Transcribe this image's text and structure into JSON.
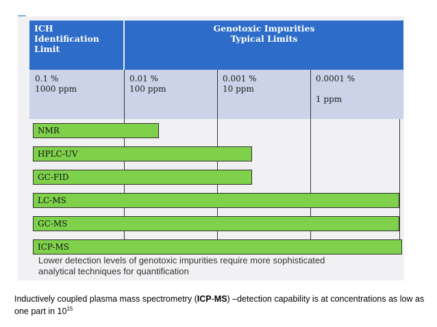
{
  "table": {
    "col1_header": "ICH\nIdentification\nLimit",
    "col2_header": "Genotoxic Impurities\nTypical Limits",
    "limits": [
      "0.1 %\n1000 ppm",
      "0.01 %\n100 ppm",
      "0.001 %\n10 ppm",
      "0.0001 %\n\n1 ppm"
    ],
    "techniques": [
      {
        "label": "NMR",
        "reach_limit_index": 0.4
      },
      {
        "label": "HPLC-UV",
        "reach_limit_index": 1.4
      },
      {
        "label": "GC-FID",
        "reach_limit_index": 1.4
      },
      {
        "label": "LC-MS",
        "reach_limit_index": 3.0
      },
      {
        "label": "GC-MS",
        "reach_limit_index": 3.0
      },
      {
        "label": "ICP-MS",
        "reach_limit_index": 3.0
      }
    ]
  },
  "caption": "Lower detection levels of genotoxic impurities require more sophisticated\nanalytical techniques for quantification",
  "footnote": {
    "pre": "Inductively coupled plasma mass spectrometry (",
    "bold1": "ICP",
    "dash": "-",
    "bold2": "MS",
    "post": ") –detection capability is  at concentrations as low as one part in 10",
    "exponent": "15"
  },
  "colors": {
    "header_bg": "#2d6cc8",
    "limits_bg": "#ccd3e9",
    "bar_fill": "#7fd14c"
  }
}
